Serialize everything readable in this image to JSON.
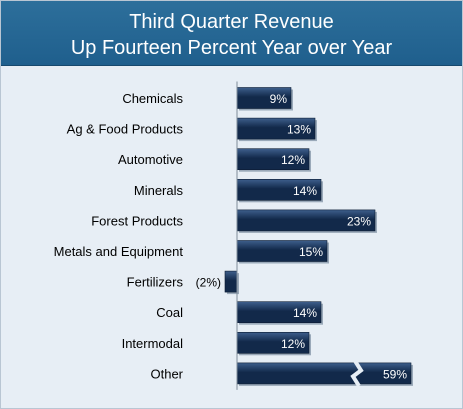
{
  "chart_data": {
    "type": "bar",
    "orientation": "horizontal",
    "title_lines": [
      "Third Quarter Revenue",
      "Up Fourteen Percent Year over Year"
    ],
    "categories": [
      "Chemicals",
      "Ag & Food Products",
      "Automotive",
      "Minerals",
      "Forest Products",
      "Metals and Equipment",
      "Fertilizers",
      "Coal",
      "Intermodal",
      "Other"
    ],
    "values": [
      9,
      13,
      12,
      14,
      23,
      15,
      -2,
      14,
      12,
      59
    ],
    "value_labels": [
      "9%",
      "13%",
      "12%",
      "14%",
      "23%",
      "15%",
      "(2%)",
      "14%",
      "12%",
      "59%"
    ],
    "axis_break": {
      "category": "Other"
    },
    "xlabel": "",
    "ylabel": "",
    "grid": false,
    "legend": "none",
    "colors": {
      "bar": "#12294a",
      "bar_light": "#3e5f8c",
      "header": "#25679a",
      "background": "#e7eef5",
      "label_outside": "#000000",
      "label_inside": "#ffffff"
    }
  }
}
